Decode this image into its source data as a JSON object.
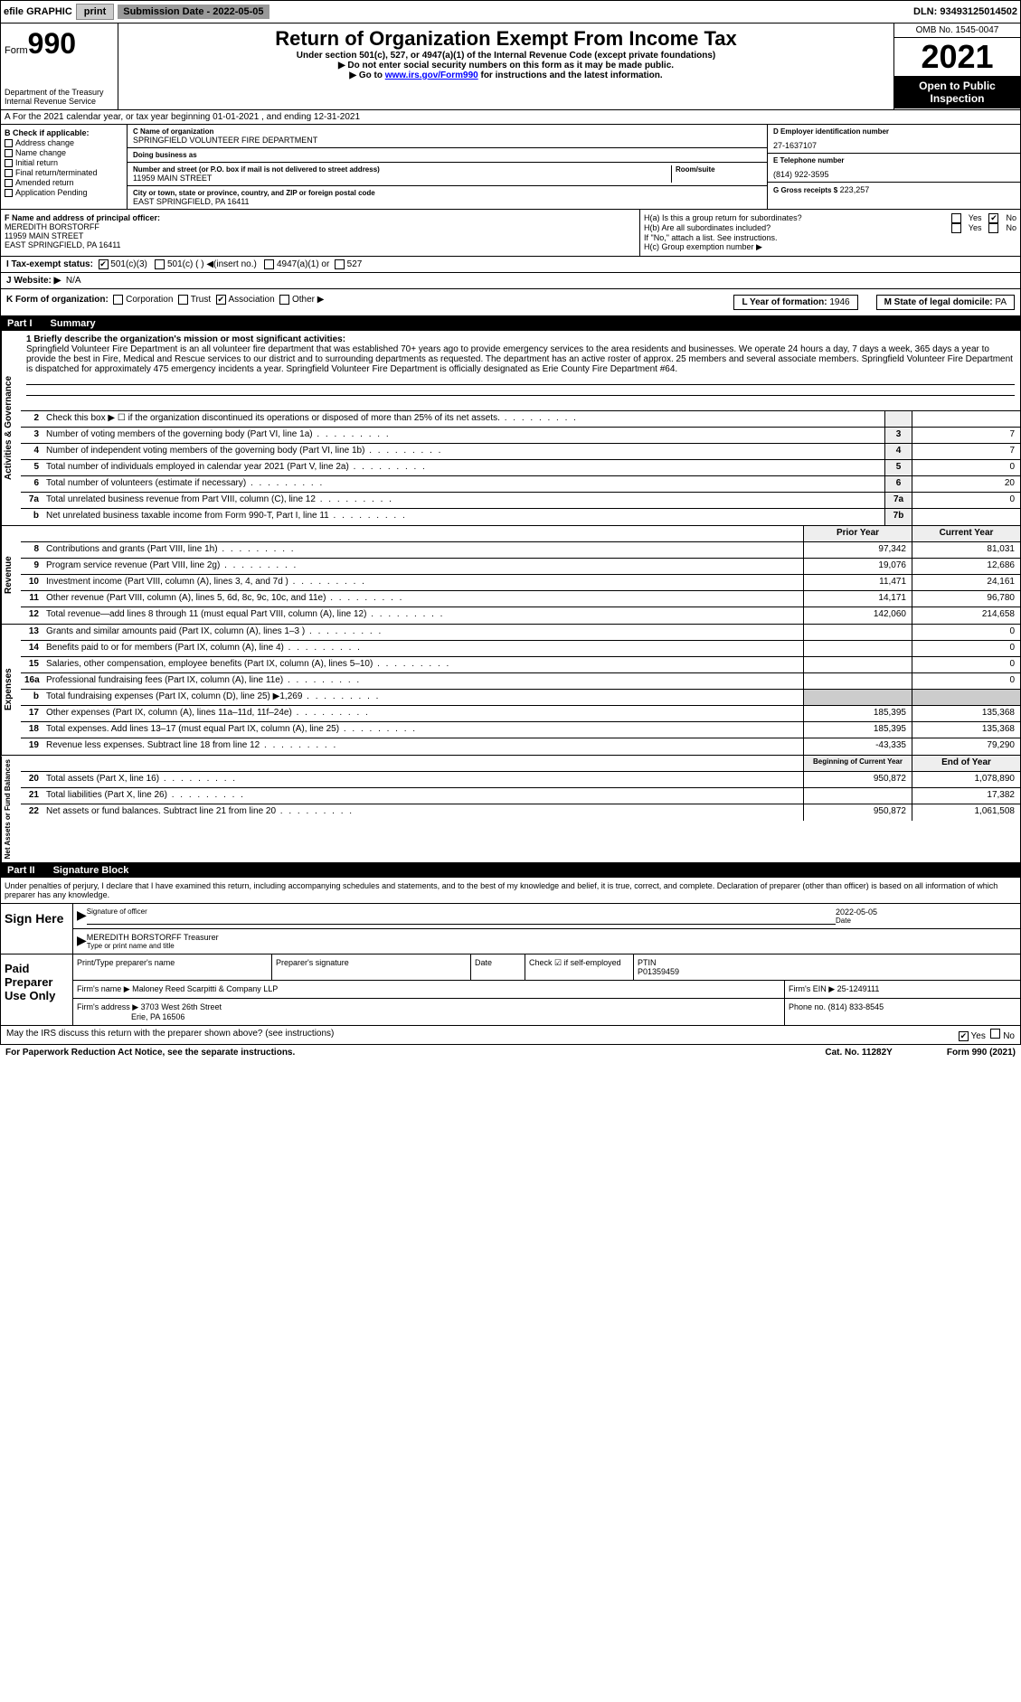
{
  "topbar": {
    "efile": "efile GRAPHIC",
    "print": "print",
    "subdate_label": "Submission Date - 2022-05-05",
    "dln": "DLN: 93493125014502"
  },
  "header": {
    "form": "Form",
    "form_num": "990",
    "dept": "Department of the Treasury",
    "irs": "Internal Revenue Service",
    "title": "Return of Organization Exempt From Income Tax",
    "sub1": "Under section 501(c), 527, or 4947(a)(1) of the Internal Revenue Code (except private foundations)",
    "sub2": "▶ Do not enter social security numbers on this form as it may be made public.",
    "sub3": "▶ Go to ",
    "sub3_link": "www.irs.gov/Form990",
    "sub3_after": " for instructions and the latest information.",
    "omb": "OMB No. 1545-0047",
    "year": "2021",
    "open": "Open to Public Inspection"
  },
  "rowA": "A For the 2021 calendar year, or tax year beginning 01-01-2021   , and ending 12-31-2021",
  "colB": {
    "hdr": "B Check if applicable:",
    "items": [
      "Address change",
      "Name change",
      "Initial return",
      "Final return/terminated",
      "Amended return",
      "Application Pending"
    ]
  },
  "colC": {
    "name_lbl": "C Name of organization",
    "name": "SPRINGFIELD VOLUNTEER FIRE DEPARTMENT",
    "dba_lbl": "Doing business as",
    "dba": "",
    "addr_lbl": "Number and street (or P.O. box if mail is not delivered to street address)",
    "addr": "11959 MAIN STREET",
    "room_lbl": "Room/suite",
    "city_lbl": "City or town, state or province, country, and ZIP or foreign postal code",
    "city": "EAST SPRINGFIELD, PA  16411"
  },
  "colD": {
    "ein_lbl": "D Employer identification number",
    "ein": "27-1637107",
    "tel_lbl": "E Telephone number",
    "tel": "(814) 922-3595",
    "gross_lbl": "G Gross receipts $",
    "gross": "223,257"
  },
  "rowF": {
    "lbl": "F  Name and address of principal officer:",
    "name": "MEREDITH BORSTORFF",
    "addr1": "11959 MAIN STREET",
    "addr2": "EAST SPRINGFIELD, PA  16411"
  },
  "rowH": {
    "ha": "H(a)  Is this a group return for subordinates?",
    "hb": "H(b)  Are all subordinates included?",
    "hb_note": "If \"No,\" attach a list. See instructions.",
    "hc": "H(c)  Group exemption number ▶",
    "yes": "Yes",
    "no": "No"
  },
  "rowI": {
    "lbl": "I   Tax-exempt status:",
    "opt1": "501(c)(3)",
    "opt2": "501(c) (  ) ◀(insert no.)",
    "opt3": "4947(a)(1) or",
    "opt4": "527"
  },
  "rowJ": {
    "lbl": "J   Website: ▶",
    "val": "N/A"
  },
  "rowK": {
    "lbl": "K Form of organization:",
    "opts": [
      "Corporation",
      "Trust",
      "Association",
      "Other ▶"
    ],
    "l_lbl": "L Year of formation:",
    "l_val": "1946",
    "m_lbl": "M State of legal domicile:",
    "m_val": "PA"
  },
  "part1": {
    "num": "Part I",
    "title": "Summary"
  },
  "mission": {
    "lbl": "1   Briefly describe the organization's mission or most significant activities:",
    "text": "Springfield Volunteer Fire Department is an all volunteer fire department that was established 70+ years ago to provide emergency services to the area residents and businesses. We operate 24 hours a day, 7 days a week, 365 days a year to provide the best in Fire, Medical and Rescue services to our district and to surrounding departments as requested. The department has an active roster of approx. 25 members and several associate members. Springfield Volunteer Fire Department is dispatched for approximately 475 emergency incidents a year. Springfield Volunteer Fire Department is officially designated as Erie County Fire Department #64."
  },
  "gov_rows": [
    {
      "n": "2",
      "label": "Check this box ▶ ☐  if the organization discontinued its operations or disposed of more than 25% of its net assets.",
      "box": "",
      "v1": "",
      "v2": ""
    },
    {
      "n": "3",
      "label": "Number of voting members of the governing body (Part VI, line 1a)",
      "box": "3",
      "v1": "",
      "v2": "7"
    },
    {
      "n": "4",
      "label": "Number of independent voting members of the governing body (Part VI, line 1b)",
      "box": "4",
      "v1": "",
      "v2": "7"
    },
    {
      "n": "5",
      "label": "Total number of individuals employed in calendar year 2021 (Part V, line 2a)",
      "box": "5",
      "v1": "",
      "v2": "0"
    },
    {
      "n": "6",
      "label": "Total number of volunteers (estimate if necessary)",
      "box": "6",
      "v1": "",
      "v2": "20"
    },
    {
      "n": "7a",
      "label": "Total unrelated business revenue from Part VIII, column (C), line 12",
      "box": "7a",
      "v1": "",
      "v2": "0"
    },
    {
      "n": "b",
      "label": "Net unrelated business taxable income from Form 990-T, Part I, line 11",
      "box": "7b",
      "v1": "",
      "v2": ""
    }
  ],
  "py_cy": {
    "py": "Prior Year",
    "cy": "Current Year"
  },
  "rev_rows": [
    {
      "n": "8",
      "label": "Contributions and grants (Part VIII, line 1h)",
      "v1": "97,342",
      "v2": "81,031"
    },
    {
      "n": "9",
      "label": "Program service revenue (Part VIII, line 2g)",
      "v1": "19,076",
      "v2": "12,686"
    },
    {
      "n": "10",
      "label": "Investment income (Part VIII, column (A), lines 3, 4, and 7d )",
      "v1": "11,471",
      "v2": "24,161"
    },
    {
      "n": "11",
      "label": "Other revenue (Part VIII, column (A), lines 5, 6d, 8c, 9c, 10c, and 11e)",
      "v1": "14,171",
      "v2": "96,780"
    },
    {
      "n": "12",
      "label": "Total revenue—add lines 8 through 11 (must equal Part VIII, column (A), line 12)",
      "v1": "142,060",
      "v2": "214,658"
    }
  ],
  "exp_rows": [
    {
      "n": "13",
      "label": "Grants and similar amounts paid (Part IX, column (A), lines 1–3 )",
      "v1": "",
      "v2": "0"
    },
    {
      "n": "14",
      "label": "Benefits paid to or for members (Part IX, column (A), line 4)",
      "v1": "",
      "v2": "0"
    },
    {
      "n": "15",
      "label": "Salaries, other compensation, employee benefits (Part IX, column (A), lines 5–10)",
      "v1": "",
      "v2": "0"
    },
    {
      "n": "16a",
      "label": "Professional fundraising fees (Part IX, column (A), line 11e)",
      "v1": "",
      "v2": "0"
    },
    {
      "n": "b",
      "label": "Total fundraising expenses (Part IX, column (D), line 25) ▶1,269",
      "v1": "shaded",
      "v2": "shaded"
    },
    {
      "n": "17",
      "label": "Other expenses (Part IX, column (A), lines 11a–11d, 11f–24e)",
      "v1": "185,395",
      "v2": "135,368"
    },
    {
      "n": "18",
      "label": "Total expenses. Add lines 13–17 (must equal Part IX, column (A), line 25)",
      "v1": "185,395",
      "v2": "135,368"
    },
    {
      "n": "19",
      "label": "Revenue less expenses. Subtract line 18 from line 12",
      "v1": "-43,335",
      "v2": "79,290"
    }
  ],
  "na_hdr": {
    "b": "Beginning of Current Year",
    "e": "End of Year"
  },
  "na_rows": [
    {
      "n": "20",
      "label": "Total assets (Part X, line 16)",
      "v1": "950,872",
      "v2": "1,078,890"
    },
    {
      "n": "21",
      "label": "Total liabilities (Part X, line 26)",
      "v1": "",
      "v2": "17,382"
    },
    {
      "n": "22",
      "label": "Net assets or fund balances. Subtract line 21 from line 20",
      "v1": "950,872",
      "v2": "1,061,508"
    }
  ],
  "side_labels": {
    "gov": "Activities & Governance",
    "rev": "Revenue",
    "exp": "Expenses",
    "na": "Net Assets or Fund Balances"
  },
  "part2": {
    "num": "Part II",
    "title": "Signature Block"
  },
  "perjury": "Under penalties of perjury, I declare that I have examined this return, including accompanying schedules and statements, and to the best of my knowledge and belief, it is true, correct, and complete. Declaration of preparer (other than officer) is based on all information of which preparer has any knowledge.",
  "sign": {
    "here": "Sign Here",
    "sig_lbl": "Signature of officer",
    "date_lbl": "Date",
    "date": "2022-05-05",
    "name": "MEREDITH BORSTORFF  Treasurer",
    "name_lbl": "Type or print name and title"
  },
  "prep": {
    "title": "Paid Preparer Use Only",
    "pt_lbl": "Print/Type preparer's name",
    "sig_lbl": "Preparer's signature",
    "date_lbl": "Date",
    "chk_lbl": "Check ☑ if self-employed",
    "ptin_lbl": "PTIN",
    "ptin": "P01359459",
    "firm_lbl": "Firm's name    ▶",
    "firm": "Maloney Reed Scarpitti & Company LLP",
    "ein_lbl": "Firm's EIN ▶",
    "ein": "25-1249111",
    "addr_lbl": "Firm's address ▶",
    "addr1": "3703 West 26th Street",
    "addr2": "Erie, PA  16506",
    "phone_lbl": "Phone no.",
    "phone": "(814) 833-8545"
  },
  "footer": {
    "discuss": "May the IRS discuss this return with the preparer shown above? (see instructions)",
    "yes": "Yes",
    "no": "No",
    "pra": "For Paperwork Reduction Act Notice, see the separate instructions.",
    "cat": "Cat. No. 11282Y",
    "form": "Form 990 (2021)"
  }
}
